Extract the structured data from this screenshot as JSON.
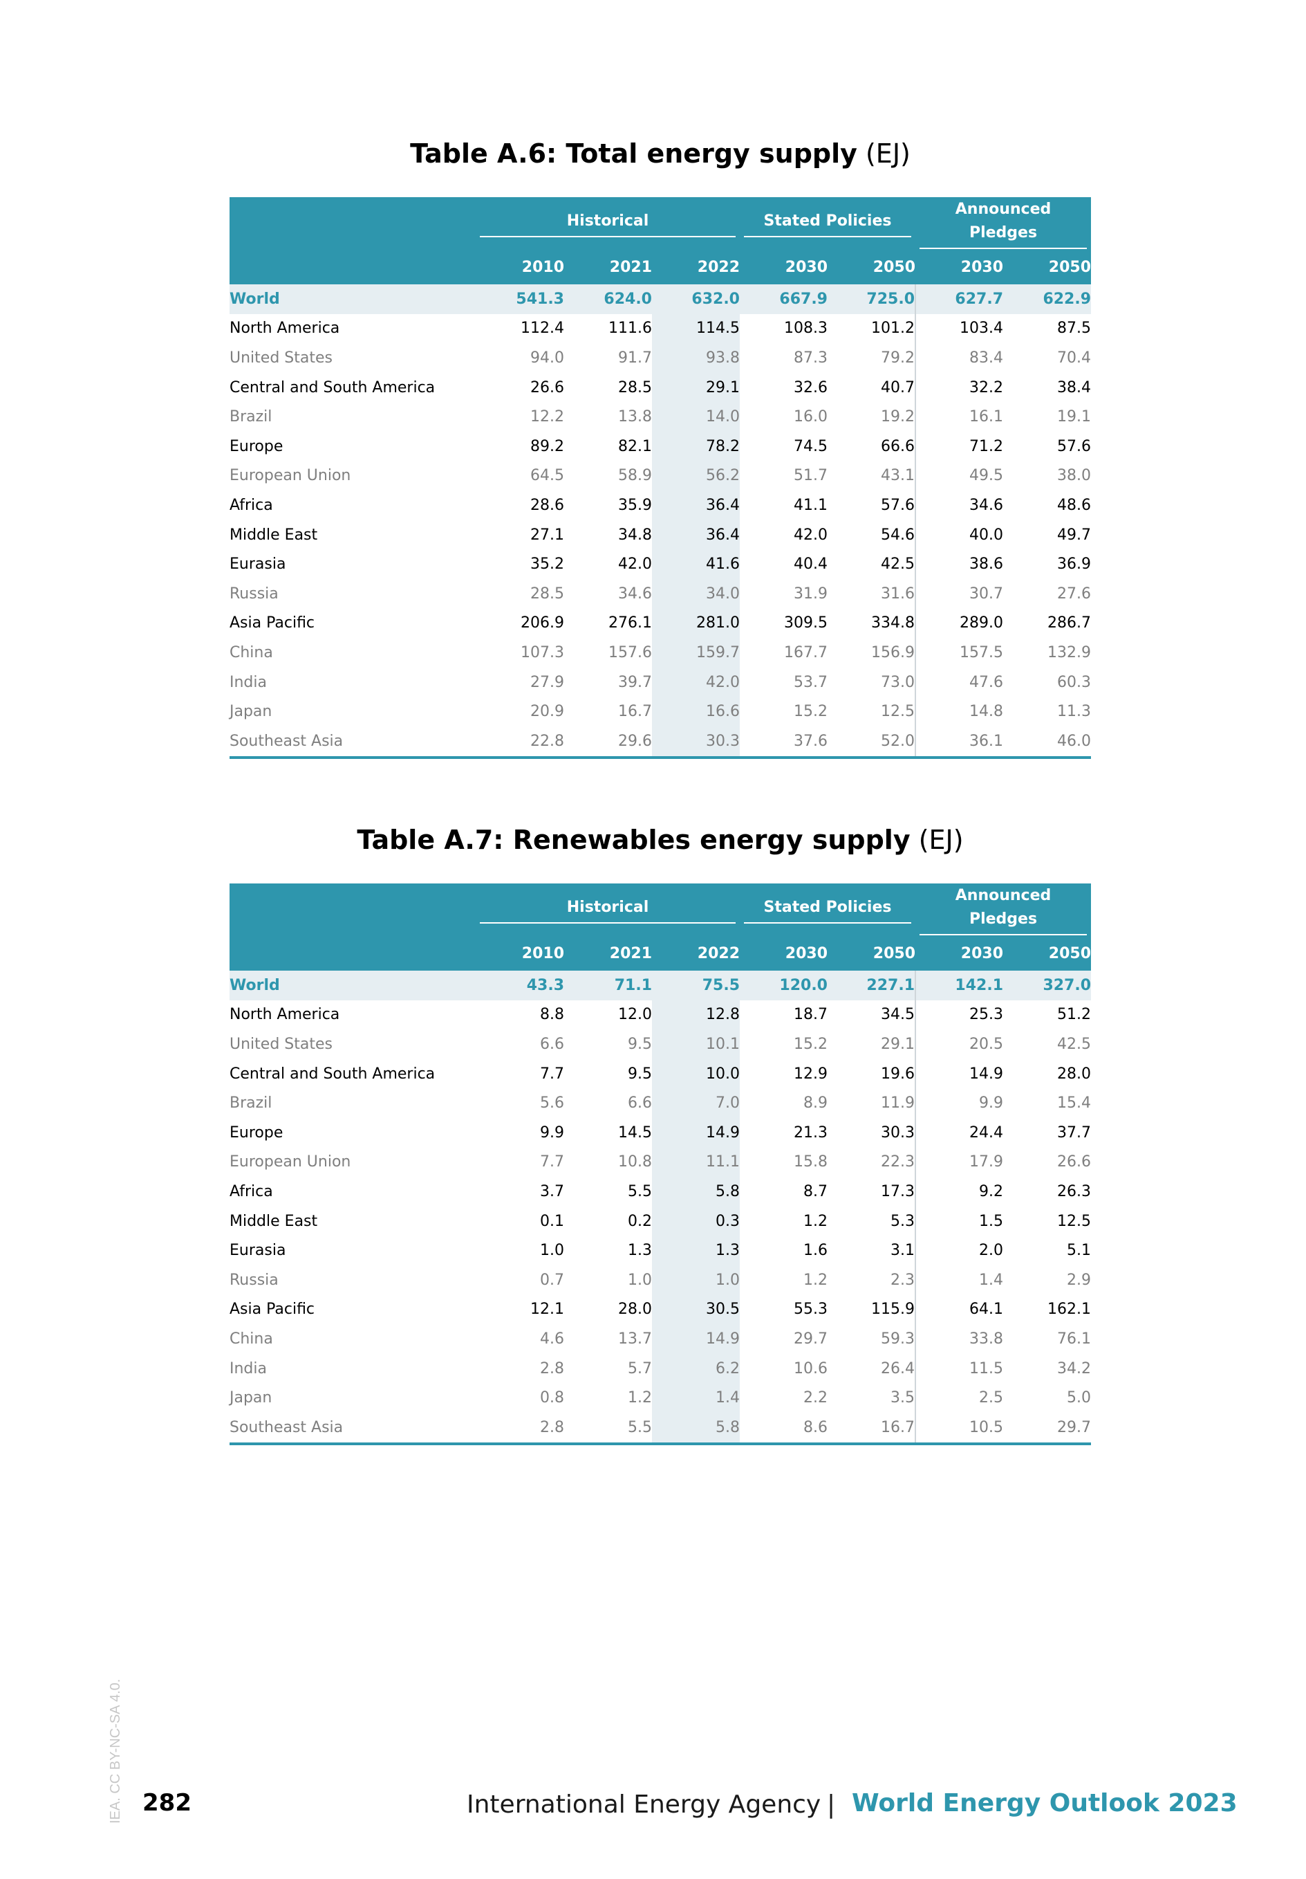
{
  "tables": [
    {
      "title_bold": "Table A.6: Total energy supply",
      "title_unit": "(EJ)",
      "groups": [
        "Historical",
        "Stated Policies",
        "Announced Pledges"
      ],
      "years": [
        "2010",
        "2021",
        "2022",
        "2030",
        "2050",
        "2030",
        "2050"
      ],
      "rows": [
        {
          "label": "World",
          "kind": "world",
          "values": [
            "541.3",
            "624.0",
            "632.0",
            "667.9",
            "725.0",
            "627.7",
            "622.9"
          ]
        },
        {
          "label": "North America",
          "kind": "region",
          "values": [
            "112.4",
            "111.6",
            "114.5",
            "108.3",
            "101.2",
            "103.4",
            "87.5"
          ]
        },
        {
          "label": "United States",
          "kind": "country",
          "values": [
            "94.0",
            "91.7",
            "93.8",
            "87.3",
            "79.2",
            "83.4",
            "70.4"
          ]
        },
        {
          "label": "Central and South America",
          "kind": "region",
          "values": [
            "26.6",
            "28.5",
            "29.1",
            "32.6",
            "40.7",
            "32.2",
            "38.4"
          ]
        },
        {
          "label": "Brazil",
          "kind": "country",
          "values": [
            "12.2",
            "13.8",
            "14.0",
            "16.0",
            "19.2",
            "16.1",
            "19.1"
          ]
        },
        {
          "label": "Europe",
          "kind": "region",
          "values": [
            "89.2",
            "82.1",
            "78.2",
            "74.5",
            "66.6",
            "71.2",
            "57.6"
          ]
        },
        {
          "label": "European Union",
          "kind": "country",
          "values": [
            "64.5",
            "58.9",
            "56.2",
            "51.7",
            "43.1",
            "49.5",
            "38.0"
          ]
        },
        {
          "label": "Africa",
          "kind": "region",
          "values": [
            "28.6",
            "35.9",
            "36.4",
            "41.1",
            "57.6",
            "34.6",
            "48.6"
          ]
        },
        {
          "label": "Middle East",
          "kind": "region",
          "values": [
            "27.1",
            "34.8",
            "36.4",
            "42.0",
            "54.6",
            "40.0",
            "49.7"
          ]
        },
        {
          "label": "Eurasia",
          "kind": "region",
          "values": [
            "35.2",
            "42.0",
            "41.6",
            "40.4",
            "42.5",
            "38.6",
            "36.9"
          ]
        },
        {
          "label": "Russia",
          "kind": "country",
          "values": [
            "28.5",
            "34.6",
            "34.0",
            "31.9",
            "31.6",
            "30.7",
            "27.6"
          ]
        },
        {
          "label": "Asia Pacific",
          "kind": "region",
          "values": [
            "206.9",
            "276.1",
            "281.0",
            "309.5",
            "334.8",
            "289.0",
            "286.7"
          ]
        },
        {
          "label": "China",
          "kind": "country",
          "values": [
            "107.3",
            "157.6",
            "159.7",
            "167.7",
            "156.9",
            "157.5",
            "132.9"
          ]
        },
        {
          "label": "India",
          "kind": "country",
          "values": [
            "27.9",
            "39.7",
            "42.0",
            "53.7",
            "73.0",
            "47.6",
            "60.3"
          ]
        },
        {
          "label": "Japan",
          "kind": "country",
          "values": [
            "20.9",
            "16.7",
            "16.6",
            "15.2",
            "12.5",
            "14.8",
            "11.3"
          ]
        },
        {
          "label": "Southeast Asia",
          "kind": "country",
          "values": [
            "22.8",
            "29.6",
            "30.3",
            "37.6",
            "52.0",
            "36.1",
            "46.0"
          ]
        }
      ]
    },
    {
      "title_bold": "Table A.7: Renewables energy supply",
      "title_unit": "(EJ)",
      "groups": [
        "Historical",
        "Stated Policies",
        "Announced Pledges"
      ],
      "years": [
        "2010",
        "2021",
        "2022",
        "2030",
        "2050",
        "2030",
        "2050"
      ],
      "rows": [
        {
          "label": "World",
          "kind": "world",
          "values": [
            "43.3",
            "71.1",
            "75.5",
            "120.0",
            "227.1",
            "142.1",
            "327.0"
          ]
        },
        {
          "label": "North America",
          "kind": "region",
          "values": [
            "8.8",
            "12.0",
            "12.8",
            "18.7",
            "34.5",
            "25.3",
            "51.2"
          ]
        },
        {
          "label": "United States",
          "kind": "country",
          "values": [
            "6.6",
            "9.5",
            "10.1",
            "15.2",
            "29.1",
            "20.5",
            "42.5"
          ]
        },
        {
          "label": "Central and South America",
          "kind": "region",
          "values": [
            "7.7",
            "9.5",
            "10.0",
            "12.9",
            "19.6",
            "14.9",
            "28.0"
          ]
        },
        {
          "label": "Brazil",
          "kind": "country",
          "values": [
            "5.6",
            "6.6",
            "7.0",
            "8.9",
            "11.9",
            "9.9",
            "15.4"
          ]
        },
        {
          "label": "Europe",
          "kind": "region",
          "values": [
            "9.9",
            "14.5",
            "14.9",
            "21.3",
            "30.3",
            "24.4",
            "37.7"
          ]
        },
        {
          "label": "European Union",
          "kind": "country",
          "values": [
            "7.7",
            "10.8",
            "11.1",
            "15.8",
            "22.3",
            "17.9",
            "26.6"
          ]
        },
        {
          "label": "Africa",
          "kind": "region",
          "values": [
            "3.7",
            "5.5",
            "5.8",
            "8.7",
            "17.3",
            "9.2",
            "26.3"
          ]
        },
        {
          "label": "Middle East",
          "kind": "region",
          "values": [
            "0.1",
            "0.2",
            "0.3",
            "1.2",
            "5.3",
            "1.5",
            "12.5"
          ]
        },
        {
          "label": "Eurasia",
          "kind": "region",
          "values": [
            "1.0",
            "1.3",
            "1.3",
            "1.6",
            "3.1",
            "2.0",
            "5.1"
          ]
        },
        {
          "label": "Russia",
          "kind": "country",
          "values": [
            "0.7",
            "1.0",
            "1.0",
            "1.2",
            "2.3",
            "1.4",
            "2.9"
          ]
        },
        {
          "label": "Asia Pacific",
          "kind": "region",
          "values": [
            "12.1",
            "28.0",
            "30.5",
            "55.3",
            "115.9",
            "64.1",
            "162.1"
          ]
        },
        {
          "label": "China",
          "kind": "country",
          "values": [
            "4.6",
            "13.7",
            "14.9",
            "29.7",
            "59.3",
            "33.8",
            "76.1"
          ]
        },
        {
          "label": "India",
          "kind": "country",
          "values": [
            "2.8",
            "5.7",
            "6.2",
            "10.6",
            "26.4",
            "11.5",
            "34.2"
          ]
        },
        {
          "label": "Japan",
          "kind": "country",
          "values": [
            "0.8",
            "1.2",
            "1.4",
            "2.2",
            "3.5",
            "2.5",
            "5.0"
          ]
        },
        {
          "label": "Southeast Asia",
          "kind": "country",
          "values": [
            "2.8",
            "5.5",
            "5.8",
            "8.6",
            "16.7",
            "10.5",
            "29.7"
          ]
        }
      ]
    }
  ],
  "footer": {
    "page_number": "282",
    "agency": "International Energy Agency",
    "separator": "|",
    "publication": "World Energy Outlook 2023",
    "license": "IEA. CC BY-NC-SA 4.0."
  },
  "colors": {
    "accent": "#2e96ad",
    "shade": "#e6eef2",
    "subtext": "#7f7f7f"
  }
}
